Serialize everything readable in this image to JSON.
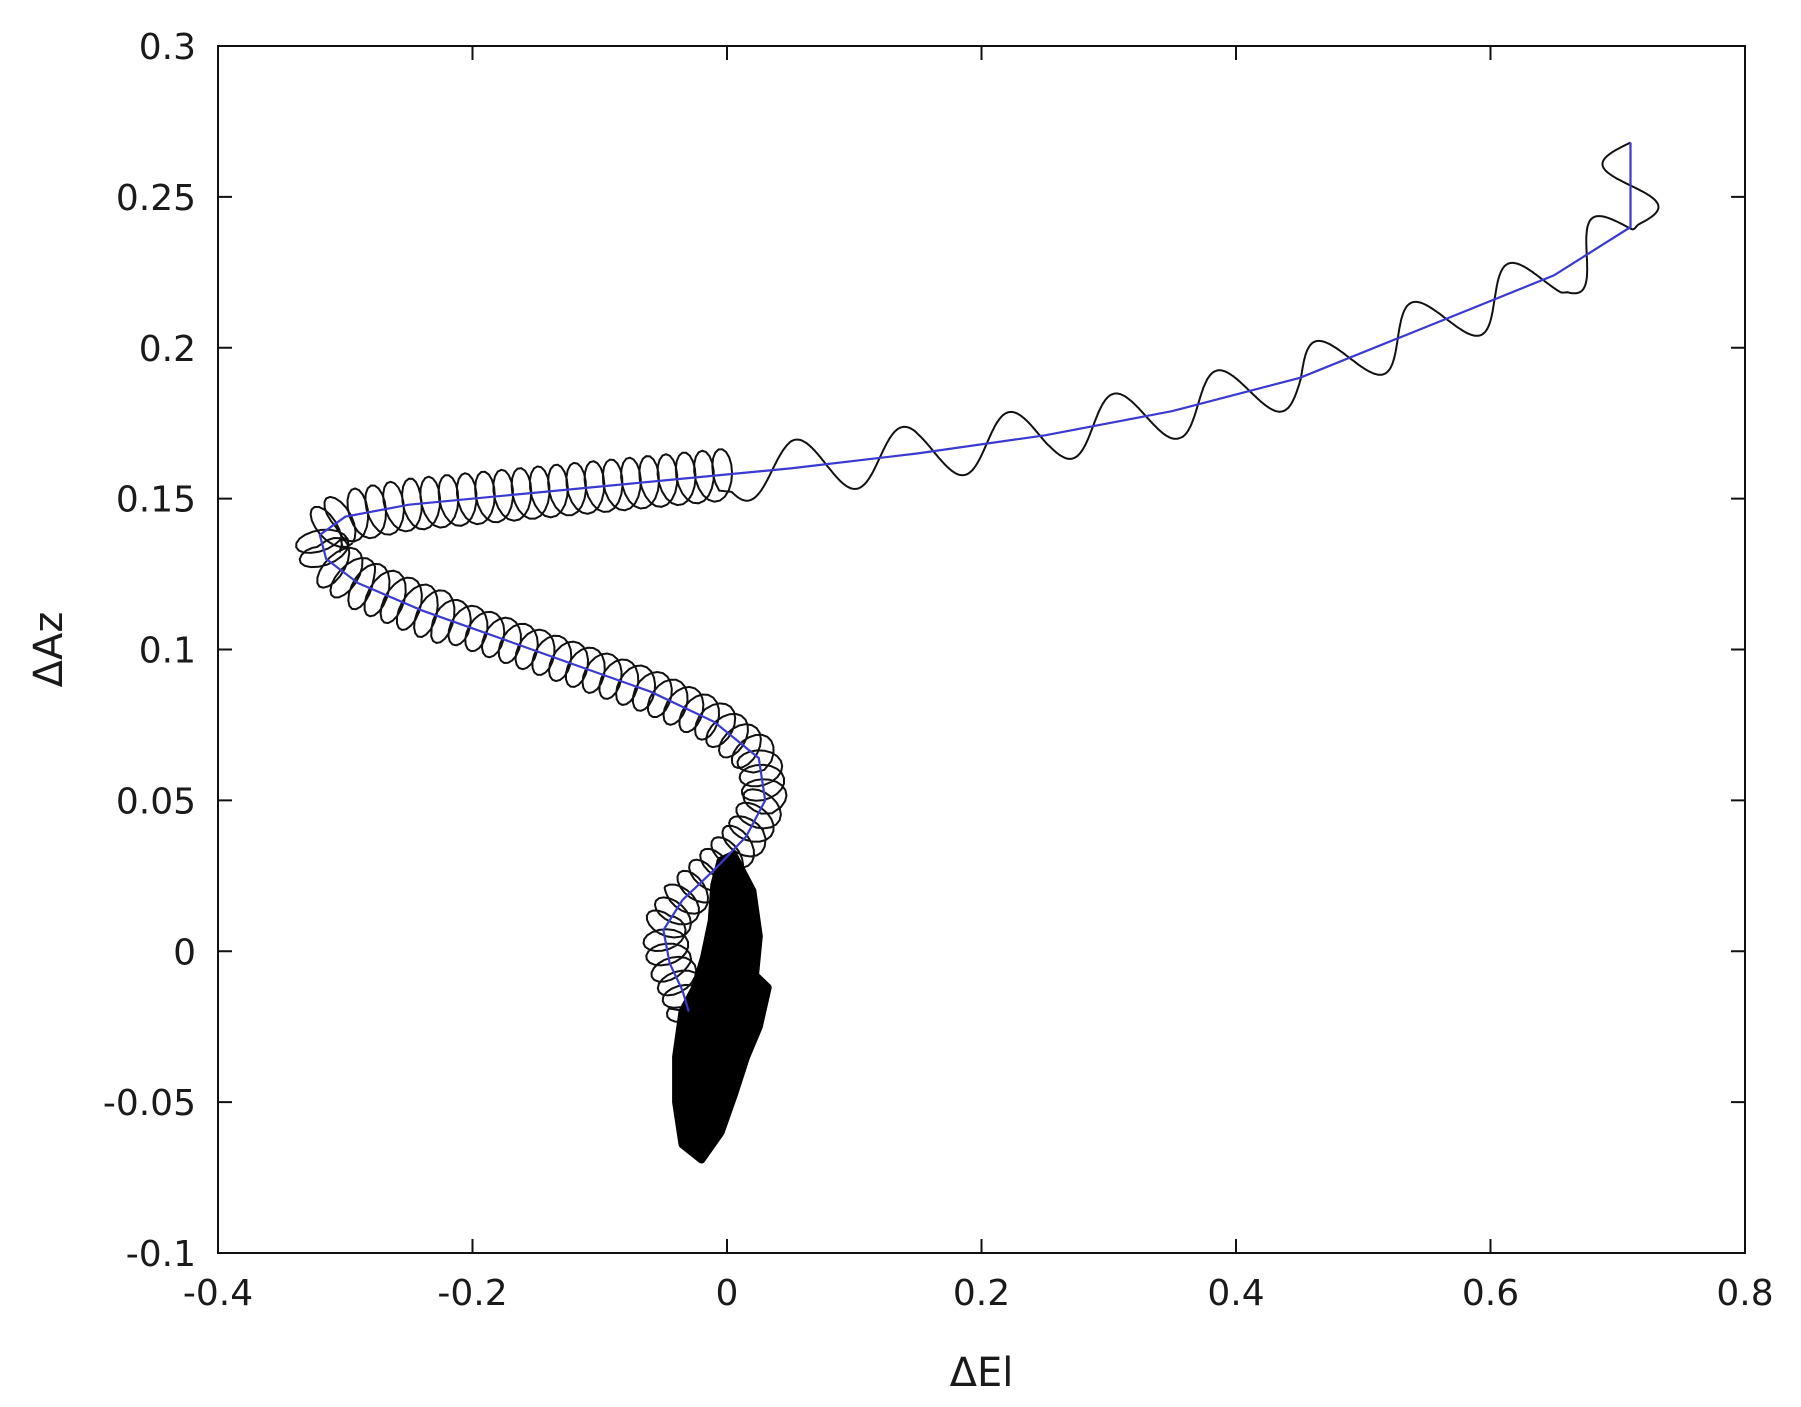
{
  "chart_data": {
    "type": "line",
    "title": "",
    "xlabel": "ΔEl",
    "ylabel": "ΔAz",
    "xlim": [
      -0.4,
      0.8
    ],
    "ylim": [
      -0.1,
      0.3
    ],
    "x_ticks": [
      -0.4,
      -0.2,
      0,
      0.2,
      0.4,
      0.6,
      0.8
    ],
    "x_tick_labels": [
      "-0.4",
      "-0.2",
      "0",
      "0.2",
      "0.4",
      "0.6",
      "0.8"
    ],
    "y_ticks": [
      -0.1,
      -0.05,
      0,
      0.05,
      0.1,
      0.15,
      0.2,
      0.25,
      0.3
    ],
    "y_tick_labels": [
      "-0.1",
      "-0.05",
      "0",
      "0.05",
      "0.1",
      "0.15",
      "0.2",
      "0.25",
      "0.3"
    ],
    "grid": false,
    "legend": "none",
    "series": [
      {
        "color": "#3a3ad0",
        "style": "smooth mean track",
        "points": [
          [
            0.71,
            0.268
          ],
          [
            0.71,
            0.24
          ],
          [
            0.65,
            0.224
          ],
          [
            0.55,
            0.207
          ],
          [
            0.45,
            0.19
          ],
          [
            0.35,
            0.179
          ],
          [
            0.25,
            0.171
          ],
          [
            0.15,
            0.165
          ],
          [
            0.05,
            0.16
          ],
          [
            -0.05,
            0.156
          ],
          [
            -0.15,
            0.152
          ],
          [
            -0.25,
            0.148
          ],
          [
            -0.3,
            0.144
          ],
          [
            -0.32,
            0.138
          ],
          [
            -0.315,
            0.13
          ],
          [
            -0.29,
            0.122
          ],
          [
            -0.24,
            0.113
          ],
          [
            -0.18,
            0.104
          ],
          [
            -0.12,
            0.095
          ],
          [
            -0.06,
            0.086
          ],
          [
            -0.01,
            0.076
          ],
          [
            0.025,
            0.064
          ],
          [
            0.03,
            0.05
          ],
          [
            0.015,
            0.038
          ],
          [
            -0.01,
            0.027
          ],
          [
            -0.035,
            0.017
          ],
          [
            -0.05,
            0.007
          ],
          [
            -0.045,
            -0.004
          ],
          [
            -0.035,
            -0.013
          ],
          [
            -0.03,
            -0.02
          ]
        ]
      },
      {
        "color": "#111111",
        "style": "oscillating track around the mean",
        "wave_peaks": [
          [
            0.68,
            0.244
          ],
          [
            0.605,
            0.228
          ],
          [
            0.48,
            0.208
          ],
          [
            0.34,
            0.193
          ],
          [
            0.19,
            0.179
          ],
          [
            0.05,
            0.171
          ],
          [
            -0.08,
            0.166
          ],
          [
            -0.18,
            0.162
          ],
          [
            -0.25,
            0.158
          ],
          [
            -0.3,
            0.152
          ]
        ],
        "wave_troughs": [
          [
            0.7,
            0.23
          ],
          [
            0.6,
            0.218
          ],
          [
            0.54,
            0.2
          ],
          [
            0.4,
            0.179
          ],
          [
            0.26,
            0.165
          ],
          [
            0.12,
            0.156
          ],
          [
            -0.01,
            0.149
          ],
          [
            -0.12,
            0.144
          ],
          [
            -0.2,
            0.139
          ],
          [
            -0.28,
            0.137
          ]
        ]
      },
      {
        "color": "#000000",
        "style": "filled dense cluster",
        "outline": [
          [
            0.005,
            0.032
          ],
          [
            0.02,
            0.02
          ],
          [
            0.025,
            0.005
          ],
          [
            0.022,
            -0.008
          ],
          [
            0.032,
            -0.012
          ],
          [
            0.025,
            -0.025
          ],
          [
            0.015,
            -0.035
          ],
          [
            0.005,
            -0.048
          ],
          [
            -0.005,
            -0.06
          ],
          [
            -0.02,
            -0.069
          ],
          [
            -0.035,
            -0.064
          ],
          [
            -0.04,
            -0.05
          ],
          [
            -0.04,
            -0.035
          ],
          [
            -0.035,
            -0.02
          ],
          [
            -0.025,
            -0.012
          ],
          [
            -0.018,
            -0.002
          ],
          [
            -0.012,
            0.01
          ],
          [
            -0.01,
            0.022
          ],
          [
            -0.005,
            0.03
          ]
        ]
      }
    ]
  }
}
